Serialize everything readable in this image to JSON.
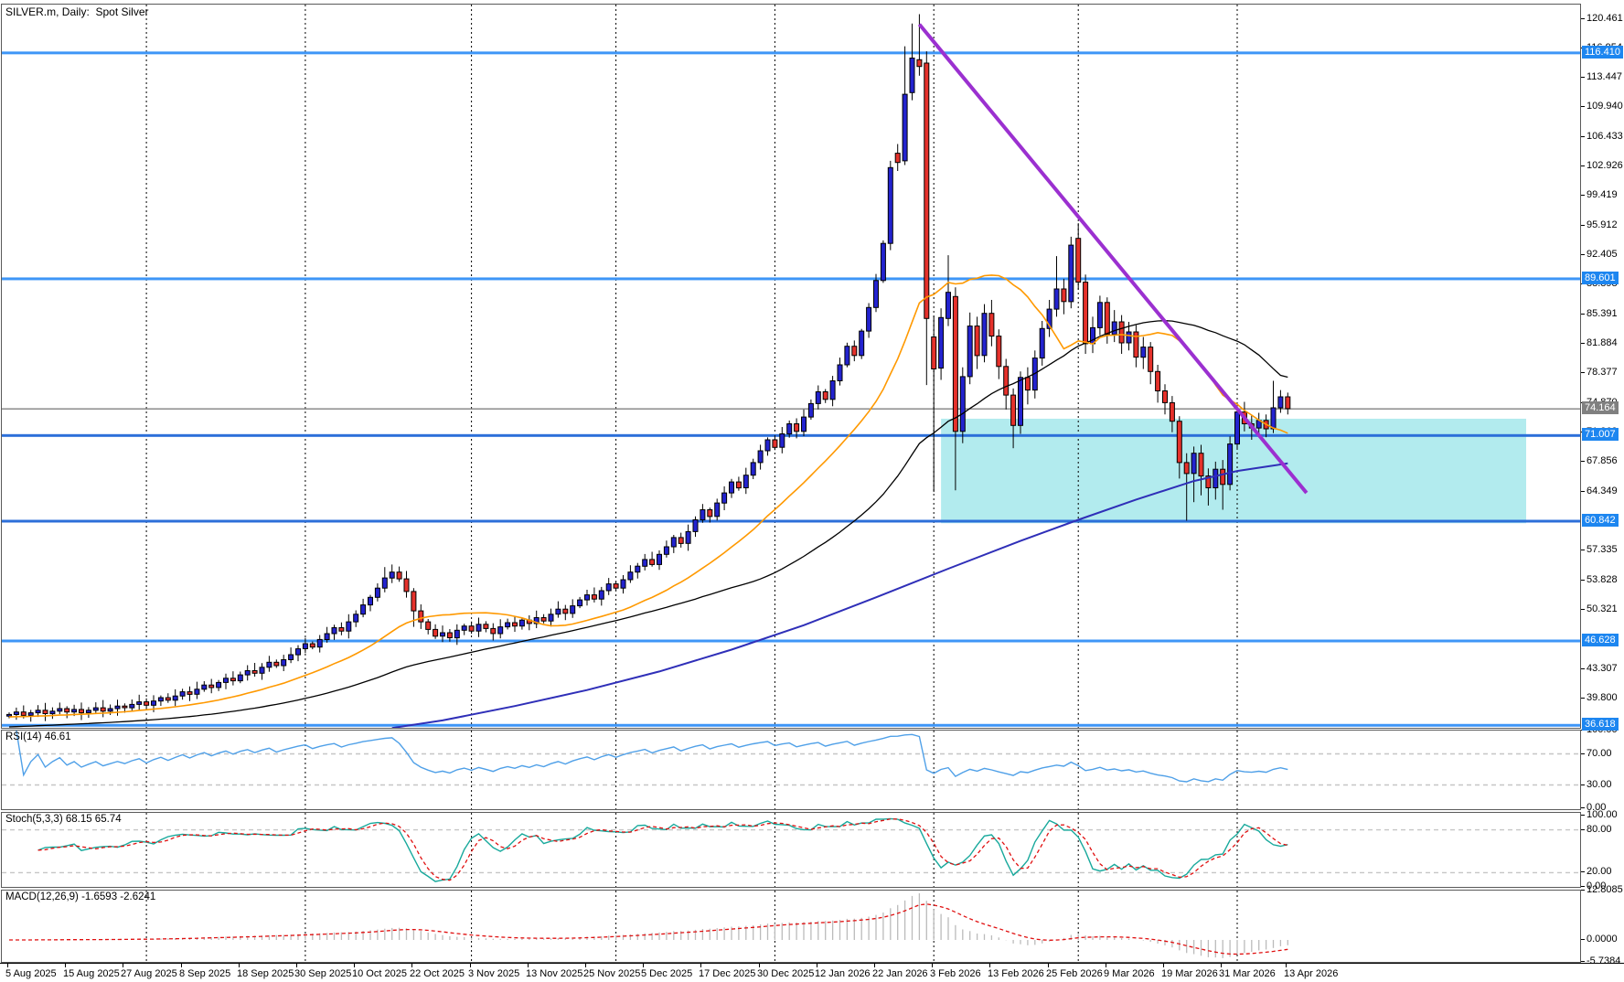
{
  "window": {
    "title": "SILVER.m, Daily:  Spot Silver"
  },
  "panels": {
    "rsi": {
      "label": "RSI(14) 46.61",
      "axis": [
        {
          "text": "100.00",
          "v": 100
        },
        {
          "text": "70.00",
          "v": 70
        },
        {
          "text": "30.00",
          "v": 30
        },
        {
          "text": "0.00",
          "v": 0
        }
      ],
      "gridlines": [
        70,
        30
      ]
    },
    "stoch": {
      "label": "Stoch(5,3,3) 68.15 65.74",
      "axis": [
        {
          "text": "100.00",
          "v": 100
        },
        {
          "text": "80.00",
          "v": 80
        },
        {
          "text": "20.00",
          "v": 20
        },
        {
          "text": "0.00",
          "v": 0
        }
      ],
      "gridlines": [
        80,
        20
      ]
    },
    "macd": {
      "label": "MACD(12,26,9) -1.6593 -2.6241",
      "axis": [
        {
          "text": "12.8085",
          "v": 12.8085
        },
        {
          "text": "0.0000",
          "v": 0
        },
        {
          "text": "-5.7384",
          "v": -5.7384
        }
      ],
      "gridlines": []
    }
  },
  "price_axis": {
    "ticks": [
      {
        "text": "120.461",
        "price": 120.461
      },
      {
        "text": "116.954",
        "price": 116.954
      },
      {
        "text": "113.447",
        "price": 113.447
      },
      {
        "text": "109.940",
        "price": 109.94
      },
      {
        "text": "106.433",
        "price": 106.433
      },
      {
        "text": "102.926",
        "price": 102.926
      },
      {
        "text": "99.419",
        "price": 99.419
      },
      {
        "text": "95.912",
        "price": 95.912
      },
      {
        "text": "92.405",
        "price": 92.405
      },
      {
        "text": "88.898",
        "price": 88.898
      },
      {
        "text": "85.391",
        "price": 85.391
      },
      {
        "text": "81.884",
        "price": 81.884
      },
      {
        "text": "78.377",
        "price": 78.377
      },
      {
        "text": "74.870",
        "price": 74.87
      },
      {
        "text": "71.363",
        "price": 71.363
      },
      {
        "text": "67.856",
        "price": 67.856
      },
      {
        "text": "64.349",
        "price": 64.349
      },
      {
        "text": "57.335",
        "price": 57.335
      },
      {
        "text": "53.828",
        "price": 53.828
      },
      {
        "text": "50.321",
        "price": 50.321
      },
      {
        "text": "43.307",
        "price": 43.307
      },
      {
        "text": "39.800",
        "price": 39.8
      }
    ]
  },
  "time_axis": {
    "labels": [
      {
        "text": "5 Aug 2025",
        "i": 0
      },
      {
        "text": "15 Aug 2025",
        "i": 8
      },
      {
        "text": "27 Aug 2025",
        "i": 16
      },
      {
        "text": "8 Sep 2025",
        "i": 24
      },
      {
        "text": "18 Sep 2025",
        "i": 32
      },
      {
        "text": "30 Sep 2025",
        "i": 40
      },
      {
        "text": "10 Oct 2025",
        "i": 48
      },
      {
        "text": "22 Oct 2025",
        "i": 56
      },
      {
        "text": "3 Nov 2025",
        "i": 64
      },
      {
        "text": "13 Nov 2025",
        "i": 72
      },
      {
        "text": "25 Nov 2025",
        "i": 80
      },
      {
        "text": "5 Dec 2025",
        "i": 88
      },
      {
        "text": "17 Dec 2025",
        "i": 96
      },
      {
        "text": "30 Dec 2025",
        "i": 104
      },
      {
        "text": "12 Jan 2026",
        "i": 112
      },
      {
        "text": "22 Jan 2026",
        "i": 120
      },
      {
        "text": "3 Feb 2026",
        "i": 128
      },
      {
        "text": "13 Feb 2026",
        "i": 136
      },
      {
        "text": "25 Feb 2026",
        "i": 144
      },
      {
        "text": "9 Mar 2026",
        "i": 152
      },
      {
        "text": "19 Mar 2026",
        "i": 160
      },
      {
        "text": "31 Mar 2026",
        "i": 168
      },
      {
        "text": "13 Apr 2026",
        "i": 177
      }
    ]
  },
  "chart_data": {
    "type": "candlestick",
    "symbol": "SILVER.m",
    "timeframe": "Daily",
    "description": "Spot Silver",
    "first_open": 37.7,
    "closes": [
      37.9,
      38.2,
      37.8,
      38.1,
      38.4,
      38.0,
      38.3,
      38.6,
      38.2,
      38.5,
      38.1,
      38.4,
      38.7,
      38.3,
      38.6,
      38.9,
      38.7,
      39.1,
      39.4,
      39.0,
      39.5,
      39.9,
      39.6,
      40.1,
      40.6,
      40.3,
      40.9,
      41.4,
      41.1,
      41.7,
      42.2,
      41.9,
      42.6,
      43.1,
      42.8,
      43.5,
      44.1,
      43.7,
      44.4,
      45.0,
      45.7,
      46.3,
      45.9,
      46.8,
      47.5,
      48.2,
      47.8,
      48.9,
      49.8,
      50.9,
      51.8,
      52.9,
      54.1,
      54.8,
      54.0,
      52.5,
      50.2,
      48.9,
      48.0,
      47.2,
      47.6,
      47.0,
      47.9,
      48.4,
      47.8,
      48.6,
      48.1,
      47.5,
      48.3,
      48.8,
      48.4,
      49.1,
      48.7,
      49.4,
      49.0,
      49.8,
      50.4,
      49.9,
      50.8,
      51.5,
      52.1,
      51.6,
      52.6,
      53.4,
      52.9,
      53.9,
      54.8,
      55.5,
      56.3,
      55.7,
      56.9,
      57.8,
      58.9,
      58.2,
      59.6,
      61.0,
      62.2,
      61.4,
      63.0,
      64.2,
      65.5,
      64.8,
      66.3,
      67.8,
      69.2,
      70.5,
      69.6,
      71.2,
      72.4,
      71.5,
      73.2,
      74.8,
      76.2,
      75.3,
      77.5,
      79.4,
      81.6,
      80.5,
      83.4,
      86.2,
      89.4,
      93.8,
      102.8,
      103.4,
      111.5,
      115.8,
      114.8,
      84.9,
      78.9,
      85.0,
      88.0,
      71.5,
      78.0,
      84.0,
      80.5,
      85.5,
      82.8,
      79.2,
      75.8,
      72.2,
      77.9,
      76.4,
      80.2,
      83.7,
      86.0,
      88.4,
      86.9,
      93.6,
      89.2,
      81.9,
      83.8,
      86.8,
      83.0,
      84.5,
      82.0,
      83.3,
      80.3,
      81.5,
      78.6,
      76.3,
      74.9,
      72.7,
      67.8,
      66.5,
      68.9,
      66.2,
      64.8,
      67.0,
      65.2,
      70.0,
      73.8,
      72.4,
      71.9,
      72.8,
      71.8,
      74.3,
      75.6,
      74.2
    ],
    "ohlc_overrides": {
      "52": [
        52.9,
        55.4,
        52.4,
        54.1
      ],
      "53": [
        54.1,
        55.7,
        53.5,
        54.8
      ],
      "56": [
        52.5,
        52.9,
        48.3,
        50.2
      ],
      "122": [
        93.8,
        103.6,
        93.0,
        102.8
      ],
      "123": [
        104.5,
        105.6,
        102.4,
        103.4
      ],
      "124": [
        103.6,
        117.2,
        103.1,
        111.5
      ],
      "125": [
        111.7,
        119.9,
        110.8,
        115.8
      ],
      "126": [
        115.6,
        121.0,
        113.7,
        114.8
      ],
      "127": [
        115.2,
        116.6,
        77.0,
        84.9
      ],
      "128": [
        82.7,
        85.2,
        64.3,
        78.9
      ],
      "129": [
        79.0,
        86.1,
        77.6,
        85.0
      ],
      "130": [
        84.9,
        92.4,
        84.0,
        88.0
      ],
      "131": [
        87.5,
        88.6,
        64.5,
        71.5
      ],
      "132": [
        71.5,
        79.1,
        70.1,
        78.0
      ],
      "133": [
        78.0,
        85.6,
        77.1,
        84.0
      ],
      "134": [
        84.0,
        85.1,
        78.9,
        80.5
      ],
      "135": [
        80.5,
        86.6,
        79.7,
        85.5
      ],
      "136": [
        85.5,
        87.1,
        81.6,
        82.8
      ],
      "137": [
        82.8,
        83.6,
        77.7,
        79.2
      ],
      "138": [
        79.2,
        80.1,
        74.1,
        75.8
      ],
      "139": [
        75.8,
        76.6,
        69.5,
        72.2
      ],
      "140": [
        72.2,
        78.6,
        71.2,
        77.9
      ],
      "141": [
        77.9,
        79.1,
        74.7,
        76.4
      ],
      "142": [
        76.4,
        81.1,
        75.4,
        80.2
      ],
      "143": [
        80.2,
        84.6,
        79.3,
        83.7
      ],
      "144": [
        83.7,
        87.1,
        82.7,
        86.0
      ],
      "145": [
        86.0,
        92.3,
        85.1,
        88.4
      ],
      "146": [
        88.4,
        89.6,
        85.4,
        86.9
      ],
      "147": [
        86.9,
        94.6,
        86.1,
        93.6
      ],
      "148": [
        94.4,
        96.2,
        88.3,
        89.2
      ],
      "149": [
        89.2,
        90.1,
        80.7,
        81.9
      ],
      "150": [
        81.9,
        85.1,
        80.8,
        83.8
      ],
      "151": [
        83.8,
        87.6,
        82.9,
        86.8
      ],
      "152": [
        86.8,
        87.4,
        81.9,
        83.0
      ],
      "153": [
        83.0,
        85.9,
        82.1,
        84.5
      ],
      "154": [
        84.5,
        85.3,
        80.7,
        82.0
      ],
      "155": [
        82.0,
        84.5,
        81.1,
        83.3
      ],
      "156": [
        83.3,
        84.1,
        79.1,
        80.3
      ],
      "157": [
        80.3,
        82.7,
        78.9,
        81.5
      ],
      "158": [
        81.5,
        82.1,
        77.1,
        78.6
      ],
      "159": [
        78.6,
        79.4,
        74.9,
        76.3
      ],
      "160": [
        76.3,
        77.1,
        73.5,
        74.9
      ],
      "161": [
        74.9,
        75.7,
        71.4,
        72.7
      ],
      "162": [
        72.7,
        73.3,
        65.9,
        67.8
      ],
      "163": [
        67.8,
        68.9,
        60.9,
        66.5
      ],
      "164": [
        66.5,
        69.7,
        63.1,
        68.9
      ],
      "165": [
        68.9,
        69.9,
        63.9,
        66.2
      ],
      "166": [
        66.2,
        67.1,
        62.7,
        64.8
      ],
      "167": [
        64.8,
        67.9,
        63.4,
        67.0
      ],
      "168": [
        67.0,
        68.1,
        62.2,
        65.2
      ],
      "169": [
        65.2,
        70.9,
        64.5,
        70.0
      ],
      "170": [
        70.0,
        74.6,
        69.3,
        73.8
      ],
      "171": [
        73.8,
        75.0,
        71.5,
        72.4
      ],
      "172": [
        72.4,
        73.4,
        70.5,
        71.9
      ],
      "173": [
        71.9,
        73.7,
        70.9,
        72.8
      ],
      "174": [
        72.8,
        73.5,
        70.8,
        71.8
      ],
      "175": [
        71.8,
        77.5,
        71.3,
        74.3
      ],
      "176": [
        74.3,
        76.4,
        73.7,
        75.6
      ],
      "177": [
        75.6,
        76.1,
        73.5,
        74.2
      ]
    },
    "levels": [
      {
        "price": 116.41,
        "label": "116.410",
        "style": "bright"
      },
      {
        "price": 89.601,
        "label": "89.601",
        "style": "bright"
      },
      {
        "price": 71.007,
        "label": "71.007",
        "style": "deep"
      },
      {
        "price": 60.842,
        "label": "60.842",
        "style": "deep"
      },
      {
        "price": 46.628,
        "label": "46.628",
        "style": "bright"
      },
      {
        "price": 36.618,
        "label": "36.618",
        "style": "bright"
      }
    ],
    "current_price": {
      "price": 74.164,
      "label": "74.164"
    },
    "rectangle": {
      "left_i": 129,
      "right_i": 210,
      "top_price": 73.0,
      "bottom_price": 60.6
    },
    "trendline": {
      "from_i": 126,
      "from_price": 119.8,
      "to_i": 179.6,
      "to_price": 64.2
    },
    "month_separators_i": [
      19,
      41,
      64,
      84,
      106,
      128,
      148,
      170
    ],
    "ma": {
      "fast_period": 20,
      "fast_prehistory": 37.6,
      "mid_period": 50,
      "mid_prehistory": 36.4
    },
    "ma_slow_anchors": [
      [
        53,
        36.3
      ],
      [
        60,
        37.2
      ],
      [
        70,
        38.9
      ],
      [
        80,
        40.8
      ],
      [
        90,
        43.0
      ],
      [
        100,
        45.6
      ],
      [
        110,
        48.5
      ],
      [
        120,
        51.8
      ],
      [
        130,
        55.2
      ],
      [
        140,
        58.5
      ],
      [
        148,
        61.0
      ],
      [
        156,
        63.4
      ],
      [
        164,
        65.6
      ],
      [
        170,
        66.8
      ],
      [
        177,
        67.7
      ]
    ],
    "indicators": {
      "rsi_period": 14,
      "rsi_value": 46.61,
      "stoch_params": [
        5,
        3,
        3
      ],
      "stoch_values": [
        68.15,
        65.74
      ],
      "macd_params": [
        12,
        26,
        9
      ],
      "macd_values": [
        -1.6593,
        -2.6241
      ]
    }
  },
  "colors": {
    "bull": "#2323CF",
    "bear": "#E5312B",
    "outline": "#000000",
    "level_bright": "#3E96F7",
    "level_deep": "#2C6FD9",
    "badge_blue": "#1D86F0",
    "current_line": "#808080",
    "badge_gray": "#808080",
    "rect_zone": "#B2EBEE",
    "trendline": "#9B30D0",
    "ma_fast": "#FF9900",
    "ma_mid": "#000000",
    "ma_slow": "#2F2FB8",
    "rsi_line": "#4FA0E8",
    "stoch_k": "#18A99C",
    "stoch_d": "#E01010",
    "macd_hist": "#BBBBBB",
    "macd_signal": "#E01010",
    "grid_dashed": "#C6C6C6",
    "separator": "#000000",
    "panel_border": "#5a5a5a"
  }
}
